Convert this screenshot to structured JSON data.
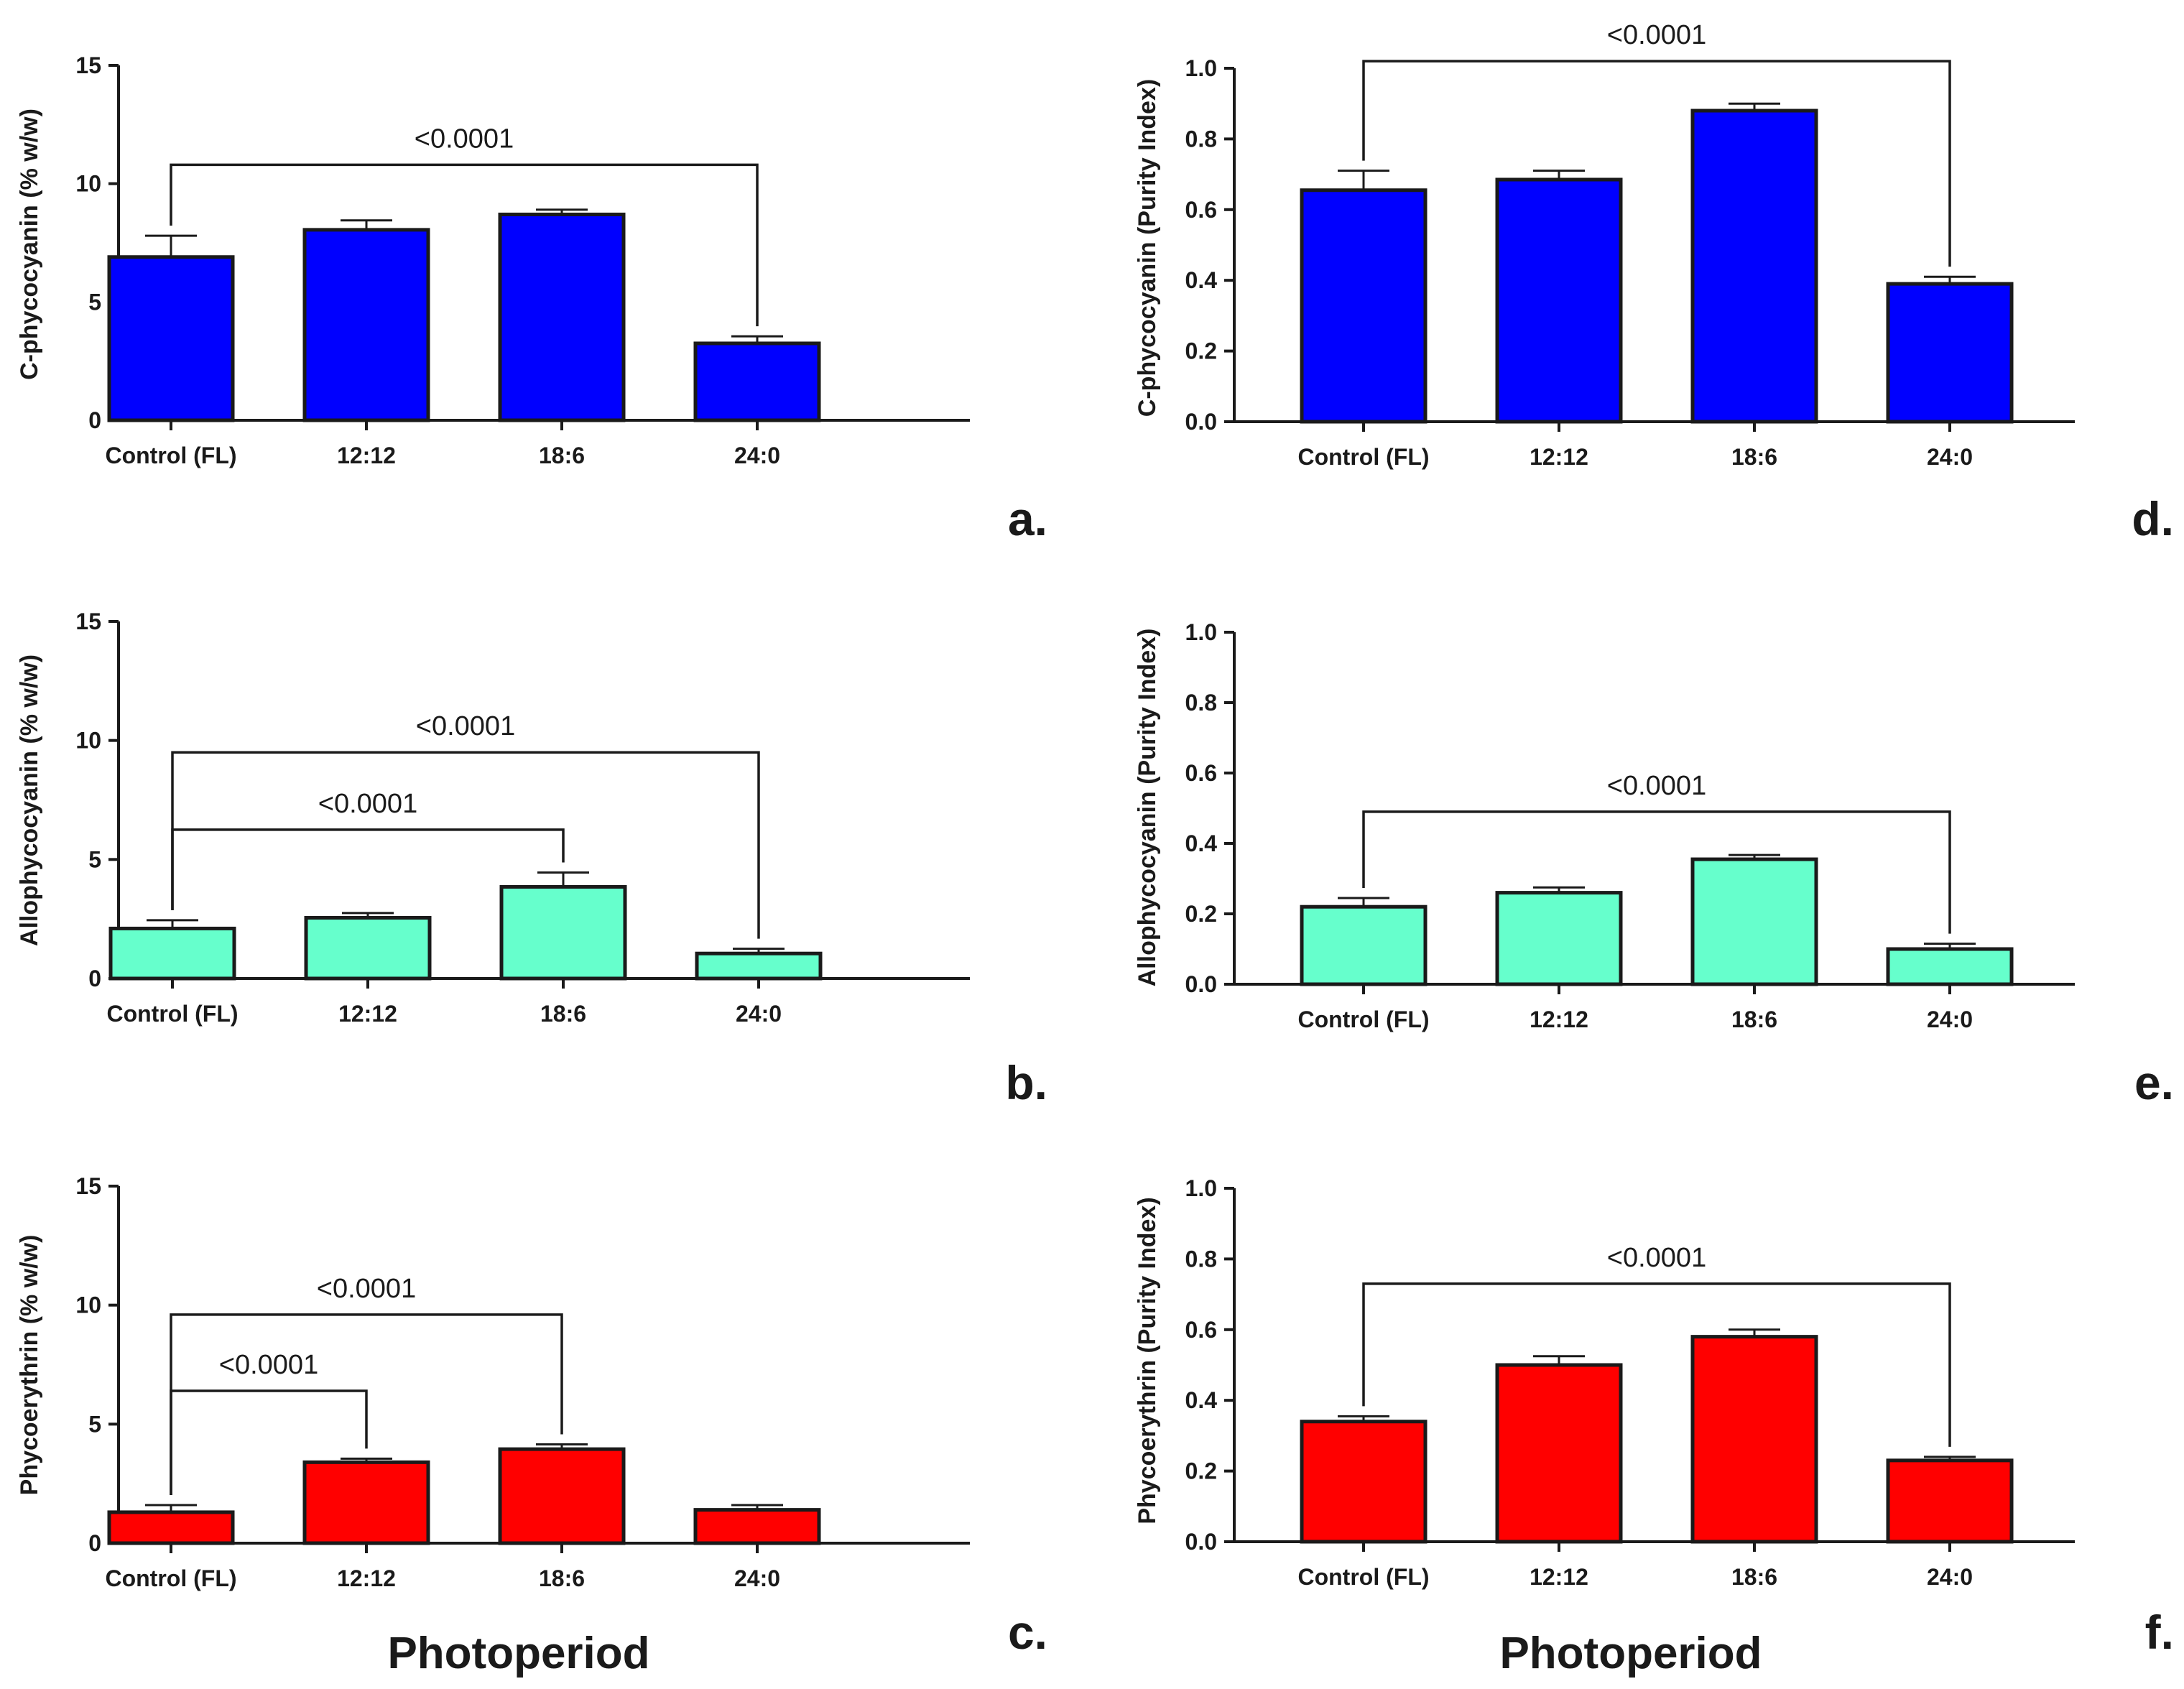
{
  "figure": {
    "x_axis_title_left": "Photoperiod",
    "x_axis_title_right": "Photoperiod"
  },
  "chart_data": [
    {
      "panel": "a.",
      "type": "bar",
      "ylabel": "C-phycocyanin (% w/w)",
      "xlabel": "",
      "categories": [
        "Control (FL)",
        "12:12",
        "18:6",
        "24:0"
      ],
      "values": [
        6.9,
        8.05,
        8.7,
        3.25
      ],
      "errors": [
        0.9,
        0.4,
        0.2,
        0.3
      ],
      "ylim": [
        0,
        15
      ],
      "yticks": [
        0,
        5,
        10,
        15
      ],
      "ytick_labels": [
        "0",
        "5",
        "10",
        "15"
      ],
      "color": "#0000ff",
      "significance": [
        {
          "from": 0,
          "to": 3,
          "label": "<0.0001",
          "height": 10.8
        }
      ]
    },
    {
      "panel": "b.",
      "type": "bar",
      "ylabel": "Allophycocyanin (% w/w)",
      "xlabel": "",
      "categories": [
        "Control (FL)",
        "12:12",
        "18:6",
        "24:0"
      ],
      "values": [
        2.1,
        2.55,
        3.85,
        1.05
      ],
      "errors": [
        0.35,
        0.2,
        0.6,
        0.2
      ],
      "ylim": [
        0,
        15
      ],
      "yticks": [
        0,
        5,
        10,
        15
      ],
      "ytick_labels": [
        "0",
        "5",
        "10",
        "15"
      ],
      "color": "#66ffcc",
      "significance": [
        {
          "from": 0,
          "to": 3,
          "label": "<0.0001",
          "height": 9.5
        },
        {
          "from": 0,
          "to": 2,
          "label": "<0.0001",
          "height": 6.25
        }
      ]
    },
    {
      "panel": "c.",
      "type": "bar",
      "ylabel": "Phycoerythrin (% w/w)",
      "xlabel": "Photoperiod",
      "categories": [
        "Control (FL)",
        "12:12",
        "18:6",
        "24:0"
      ],
      "values": [
        1.3,
        3.4,
        3.95,
        1.4
      ],
      "errors": [
        0.3,
        0.15,
        0.2,
        0.2
      ],
      "ylim": [
        0,
        15
      ],
      "yticks": [
        0,
        5,
        10,
        15
      ],
      "ytick_labels": [
        "0",
        "5",
        "10",
        "15"
      ],
      "color": "#ff0000",
      "significance": [
        {
          "from": 0,
          "to": 2,
          "label": "<0.0001",
          "height": 9.6
        },
        {
          "from": 0,
          "to": 1,
          "label": "<0.0001",
          "height": 6.4
        }
      ]
    },
    {
      "panel": "d.",
      "type": "bar",
      "ylabel": "C-phycocyanin (Purity Index)",
      "xlabel": "",
      "categories": [
        "Control (FL)",
        "12:12",
        "18:6",
        "24:0"
      ],
      "values": [
        0.655,
        0.685,
        0.88,
        0.39
      ],
      "errors": [
        0.055,
        0.025,
        0.02,
        0.02
      ],
      "ylim": [
        0,
        1.0
      ],
      "yticks": [
        0,
        0.2,
        0.4,
        0.6,
        0.8,
        1.0
      ],
      "ytick_labels": [
        "0.0",
        "0.2",
        "0.4",
        "0.6",
        "0.8",
        "1.0"
      ],
      "color": "#0000ff",
      "significance": [
        {
          "from": 0,
          "to": 3,
          "label": "<0.0001",
          "height": 1.02
        }
      ]
    },
    {
      "panel": "e.",
      "type": "bar",
      "ylabel": "Allophycocyanin (Purity Index)",
      "xlabel": "",
      "categories": [
        "Control (FL)",
        "12:12",
        "18:6",
        "24:0"
      ],
      "values": [
        0.22,
        0.26,
        0.355,
        0.1
      ],
      "errors": [
        0.025,
        0.015,
        0.012,
        0.015
      ],
      "ylim": [
        0,
        1.0
      ],
      "yticks": [
        0,
        0.2,
        0.4,
        0.6,
        0.8,
        1.0
      ],
      "ytick_labels": [
        "0.0",
        "0.2",
        "0.4",
        "0.6",
        "0.8",
        "1.0"
      ],
      "color": "#66ffcc",
      "significance": [
        {
          "from": 0,
          "to": 3,
          "label": "<0.0001",
          "height": 0.49
        }
      ]
    },
    {
      "panel": "f.",
      "type": "bar",
      "ylabel": "Phycoerythrin (Purity Index)",
      "xlabel": "Photoperiod",
      "categories": [
        "Control (FL)",
        "12:12",
        "18:6",
        "24:0"
      ],
      "values": [
        0.34,
        0.5,
        0.58,
        0.23
      ],
      "errors": [
        0.015,
        0.025,
        0.02,
        0.01
      ],
      "ylim": [
        0,
        1.0
      ],
      "yticks": [
        0,
        0.2,
        0.4,
        0.6,
        0.8,
        1.0
      ],
      "ytick_labels": [
        "0.0",
        "0.2",
        "0.4",
        "0.6",
        "0.8",
        "1.0"
      ],
      "color": "#ff0000",
      "significance": [
        {
          "from": 0,
          "to": 3,
          "label": "<0.0001",
          "height": 0.73
        }
      ]
    }
  ]
}
